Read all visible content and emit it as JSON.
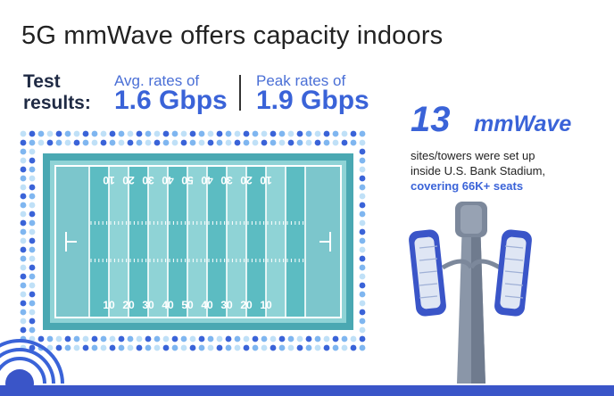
{
  "title": "5G mmWave offers capacity indoors",
  "test_label": [
    "Test",
    "results:"
  ],
  "rates": {
    "avg": {
      "caption": "Avg. rates of",
      "value": "1.6 Gbps"
    },
    "peak": {
      "caption": "Peak rates of",
      "value": "1.9 Gbps"
    }
  },
  "sites": {
    "count": "13",
    "unit": "mmWave",
    "desc_line1": "sites/towers were set up",
    "desc_line2": "inside U.S. Bank Stadium,",
    "desc_line3": "covering 66K+ seats"
  },
  "field": {
    "yard_numbers": [
      "10",
      "20",
      "30",
      "40",
      "50",
      "40",
      "30",
      "20",
      "10"
    ]
  },
  "colors": {
    "accent": "#3a63d8",
    "field_light": "#8fd3d6",
    "field_dark": "#5cbcc2",
    "field_border": "#4aa8b2",
    "dots": [
      "#3a63d8",
      "#7fb6f0",
      "#bfe0f7"
    ]
  },
  "icons": [
    "stadium-field-icon",
    "cell-tower-icon",
    "signal-waves-icon"
  ]
}
